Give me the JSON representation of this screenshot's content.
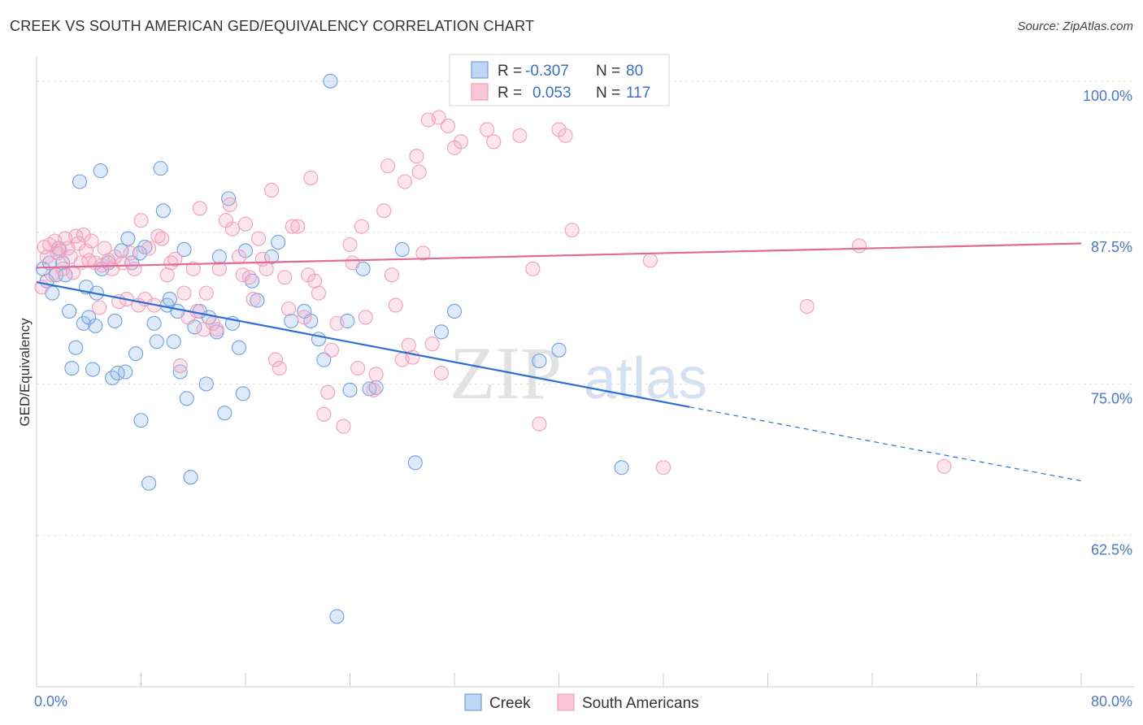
{
  "title": "CREEK VS SOUTH AMERICAN GED/EQUIVALENCY CORRELATION CHART",
  "source": "Source: ZipAtlas.com",
  "colors": {
    "creek": "#6f9fe0",
    "creek_line": "#2b6fd2",
    "south": "#f0a0bb",
    "south_line": "#e06b96",
    "tick": "#4a7ac7"
  },
  "chart_data": {
    "type": "scatter",
    "ylabel": "GED/Equivalency",
    "xlim": [
      0,
      80
    ],
    "ylim": [
      50,
      102
    ],
    "x_ticks": [
      "0.0%",
      "80.0%"
    ],
    "y_ticks": [
      {
        "value": 100,
        "label": "100.0%"
      },
      {
        "value": 87.5,
        "label": "87.5%"
      },
      {
        "value": 75,
        "label": "75.0%"
      },
      {
        "value": 62.5,
        "label": "62.5%"
      }
    ],
    "legend": {
      "rows": [
        {
          "r_label": "R =",
          "r_value": "-0.307",
          "n_label": "N =",
          "n_value": "80"
        },
        {
          "r_label": "R =",
          "r_value": "0.053",
          "n_label": "N =",
          "n_value": "117"
        }
      ]
    },
    "series": [
      {
        "name": "Creek",
        "trend": {
          "x0": 0,
          "y0": 83.4,
          "x1": 50,
          "y1": 73.1,
          "dash_to_x": 80,
          "dash_to_y": 67.0
        },
        "points": [
          [
            0.5,
            84.5
          ],
          [
            0.8,
            83.5
          ],
          [
            1,
            85
          ],
          [
            1.2,
            82.5
          ],
          [
            1.5,
            84
          ],
          [
            1.7,
            86.2
          ],
          [
            2,
            85
          ],
          [
            2.2,
            84
          ],
          [
            2.5,
            81
          ],
          [
            2.7,
            76.3
          ],
          [
            3,
            78
          ],
          [
            3.3,
            91.7
          ],
          [
            3.6,
            80
          ],
          [
            3.8,
            83
          ],
          [
            4,
            80.5
          ],
          [
            4.3,
            76.2
          ],
          [
            4.6,
            82.5
          ],
          [
            4.9,
            92.6
          ],
          [
            5,
            84.5
          ],
          [
            5.5,
            85
          ],
          [
            5.8,
            75.5
          ],
          [
            6,
            80.2
          ],
          [
            6.5,
            86
          ],
          [
            6.8,
            76
          ],
          [
            7,
            87
          ],
          [
            7.3,
            85
          ],
          [
            7.6,
            77.5
          ],
          [
            8,
            72
          ],
          [
            8.3,
            86.3
          ],
          [
            8.6,
            66.8
          ],
          [
            9,
            80
          ],
          [
            9.2,
            78.5
          ],
          [
            9.5,
            92.8
          ],
          [
            9.7,
            89.3
          ],
          [
            10,
            81.5
          ],
          [
            10.2,
            82
          ],
          [
            10.5,
            78.5
          ],
          [
            10.8,
            81
          ],
          [
            11,
            76
          ],
          [
            11.5,
            73.8
          ],
          [
            11.8,
            67.3
          ],
          [
            12.5,
            81
          ],
          [
            13,
            75
          ],
          [
            13.2,
            80.5
          ],
          [
            13.8,
            79.3
          ],
          [
            14,
            85.5
          ],
          [
            14.4,
            72.6
          ],
          [
            14.7,
            90.3
          ],
          [
            15,
            80
          ],
          [
            15.5,
            78
          ],
          [
            15.8,
            74.2
          ],
          [
            16,
            86
          ],
          [
            16.5,
            83.5
          ],
          [
            18,
            85.5
          ],
          [
            18.5,
            86.7
          ],
          [
            19.5,
            80.2
          ],
          [
            20.5,
            81
          ],
          [
            21,
            80.2
          ],
          [
            22,
            77
          ],
          [
            22.5,
            100
          ],
          [
            23,
            55.8
          ],
          [
            23.8,
            80.2
          ],
          [
            24,
            74.5
          ],
          [
            25,
            84.5
          ],
          [
            25.5,
            74.6
          ],
          [
            26,
            74.7
          ],
          [
            28,
            86.1
          ],
          [
            29,
            68.5
          ],
          [
            31,
            79.3
          ],
          [
            32,
            81
          ],
          [
            38.5,
            76.9
          ],
          [
            40,
            77.8
          ],
          [
            44.8,
            68.1
          ],
          [
            4.5,
            79.8
          ],
          [
            6.2,
            75.9
          ],
          [
            7.9,
            85.8
          ],
          [
            11.3,
            86.1
          ],
          [
            12.1,
            79.7
          ],
          [
            16.9,
            81.9
          ],
          [
            21.6,
            78.7
          ]
        ]
      },
      {
        "name": "South Americans",
        "trend": {
          "x0": 0,
          "y0": 84.6,
          "x1": 80,
          "y1": 86.6
        },
        "points": [
          [
            0.4,
            83
          ],
          [
            0.6,
            86.3
          ],
          [
            0.8,
            85.5
          ],
          [
            1,
            86.5
          ],
          [
            1.2,
            84
          ],
          [
            1.4,
            86.8
          ],
          [
            1.6,
            85.8
          ],
          [
            1.8,
            86
          ],
          [
            2,
            84.5
          ],
          [
            2.2,
            87
          ],
          [
            2.4,
            86.2
          ],
          [
            2.6,
            85.5
          ],
          [
            2.8,
            84.2
          ],
          [
            3,
            87.2
          ],
          [
            3.2,
            86.6
          ],
          [
            3.4,
            85
          ],
          [
            3.6,
            87.3
          ],
          [
            3.8,
            86
          ],
          [
            4,
            85.2
          ],
          [
            4.2,
            86.8
          ],
          [
            4.5,
            85
          ],
          [
            4.8,
            81.3
          ],
          [
            5,
            84.8
          ],
          [
            5.2,
            86.2
          ],
          [
            5.5,
            85.2
          ],
          [
            5.8,
            84.5
          ],
          [
            6,
            85.5
          ],
          [
            6.3,
            81.8
          ],
          [
            6.6,
            85
          ],
          [
            6.9,
            82
          ],
          [
            7.2,
            85.8
          ],
          [
            7.5,
            84.5
          ],
          [
            7.8,
            81.5
          ],
          [
            8,
            88.5
          ],
          [
            8.3,
            82
          ],
          [
            8.6,
            86.2
          ],
          [
            9,
            81.5
          ],
          [
            9.3,
            87.2
          ],
          [
            9.6,
            87
          ],
          [
            10,
            84
          ],
          [
            10.3,
            85
          ],
          [
            10.6,
            85.3
          ],
          [
            11,
            76.5
          ],
          [
            11.3,
            82.5
          ],
          [
            11.6,
            80.5
          ],
          [
            12,
            84.5
          ],
          [
            12.3,
            81
          ],
          [
            12.5,
            89.5
          ],
          [
            12.8,
            79.5
          ],
          [
            13,
            82.5
          ],
          [
            13.5,
            80
          ],
          [
            13.8,
            79.5
          ],
          [
            14,
            84.5
          ],
          [
            14.5,
            88.5
          ],
          [
            14.8,
            89.8
          ],
          [
            15,
            87.8
          ],
          [
            15.5,
            85.5
          ],
          [
            15.8,
            84
          ],
          [
            16,
            88.2
          ],
          [
            16.3,
            83.8
          ],
          [
            16.6,
            82
          ],
          [
            17,
            87
          ],
          [
            17.3,
            85.3
          ],
          [
            17.6,
            84.5
          ],
          [
            18,
            91
          ],
          [
            18.3,
            77
          ],
          [
            18.6,
            76.3
          ],
          [
            19,
            83.8
          ],
          [
            19.3,
            81.2
          ],
          [
            19.6,
            88
          ],
          [
            20,
            88
          ],
          [
            20.5,
            80.5
          ],
          [
            20.8,
            84
          ],
          [
            21,
            92
          ],
          [
            21.3,
            83.5
          ],
          [
            21.6,
            82.5
          ],
          [
            22,
            72.5
          ],
          [
            22.3,
            74.3
          ],
          [
            22.6,
            77.8
          ],
          [
            23,
            80
          ],
          [
            23.5,
            71.5
          ],
          [
            24,
            86.5
          ],
          [
            24.2,
            85
          ],
          [
            24.6,
            76.3
          ],
          [
            24.9,
            88
          ],
          [
            25.2,
            80.5
          ],
          [
            25.8,
            74.5
          ],
          [
            26,
            75.8
          ],
          [
            26.6,
            89.3
          ],
          [
            26.9,
            93
          ],
          [
            27.2,
            84
          ],
          [
            27.5,
            81.5
          ],
          [
            28,
            77
          ],
          [
            28.2,
            91.7
          ],
          [
            28.5,
            78.2
          ],
          [
            28.8,
            77.2
          ],
          [
            29.1,
            93.8
          ],
          [
            29.3,
            92.5
          ],
          [
            29.6,
            85.8
          ],
          [
            30,
            96.8
          ],
          [
            30.3,
            78.3
          ],
          [
            30.8,
            97
          ],
          [
            31,
            75.9
          ],
          [
            31.5,
            96.3
          ],
          [
            32,
            94.5
          ],
          [
            32.5,
            95
          ],
          [
            33,
            100
          ],
          [
            34.5,
            96
          ],
          [
            35,
            95
          ],
          [
            36,
            99.2
          ],
          [
            37,
            95.5
          ],
          [
            38,
            84.5
          ],
          [
            38.5,
            71.7
          ],
          [
            40,
            96
          ],
          [
            40.5,
            95.5
          ],
          [
            41,
            87.7
          ],
          [
            47,
            85.2
          ],
          [
            48,
            68.1
          ],
          [
            59,
            81.4
          ],
          [
            63,
            86.4
          ],
          [
            69.5,
            68.2
          ]
        ]
      }
    ]
  },
  "legend_bottom": {
    "items": [
      "Creek",
      "South Americans"
    ]
  },
  "watermark": {
    "zip": "ZIP",
    "atlas": "atlas"
  }
}
